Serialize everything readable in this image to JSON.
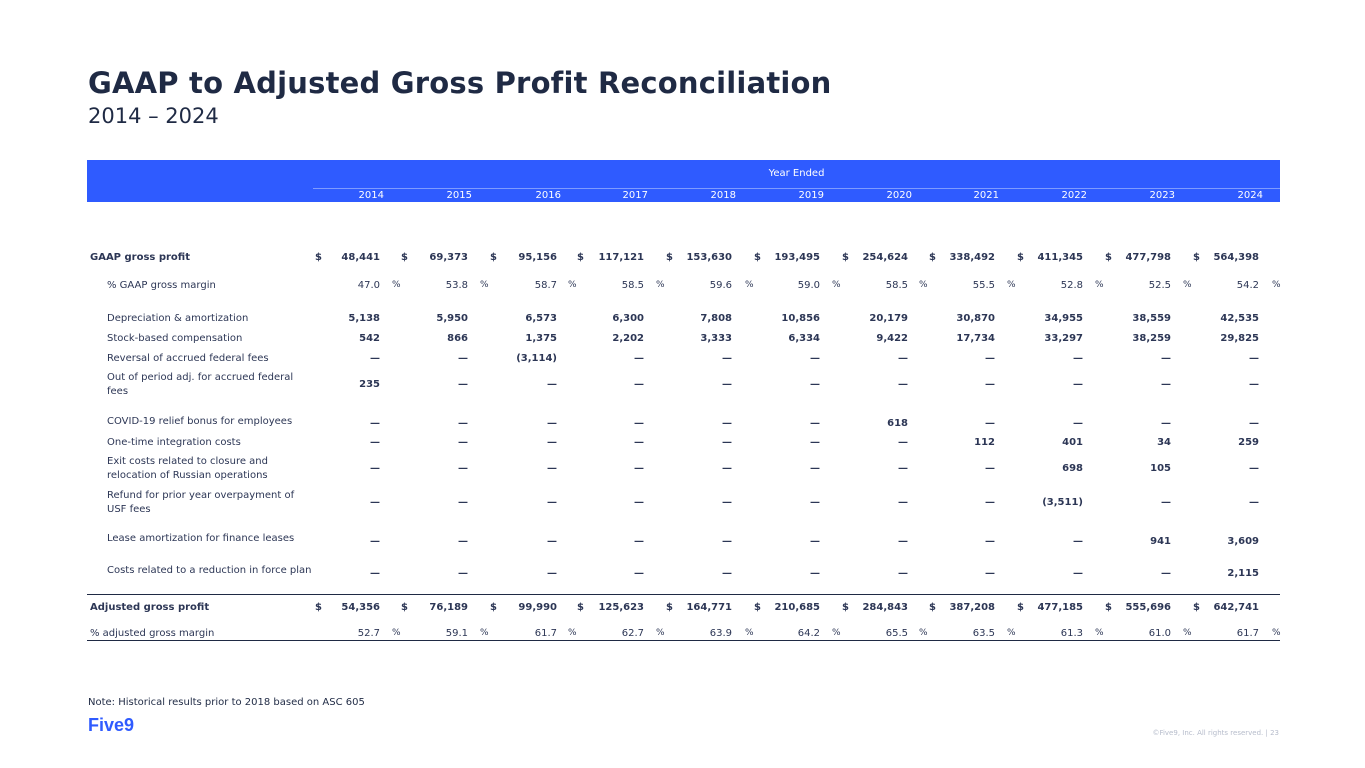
{
  "title": "GAAP to Adjusted Gross Profit Reconciliation",
  "subtitle": "2014 – 2024",
  "table": {
    "year_ended": "Year Ended",
    "years": [
      "2014",
      "2015",
      "2016",
      "2017",
      "2018",
      "2019",
      "2020",
      "2021",
      "2022",
      "2023",
      "2024"
    ],
    "rows": [
      {
        "label": "GAAP gross profit",
        "kind": "top",
        "dollar": true,
        "values": [
          "48,441",
          "69,373",
          "95,156",
          "117,121",
          "153,630",
          "193,495",
          "254,624",
          "338,492",
          "411,345",
          "477,798",
          "564,398"
        ]
      },
      {
        "label": "% GAAP gross margin",
        "kind": "sub",
        "pct": true,
        "values": [
          "47.0",
          "53.8",
          "58.7",
          "58.5",
          "59.6",
          "59.0",
          "58.5",
          "55.5",
          "52.8",
          "52.5",
          "54.2"
        ]
      },
      {
        "label": "Depreciation & amortization",
        "kind": "sub",
        "values": [
          "5,138",
          "5,950",
          "6,573",
          "6,300",
          "7,808",
          "10,856",
          "20,179",
          "30,870",
          "34,955",
          "38,559",
          "42,535"
        ]
      },
      {
        "label": "Stock-based compensation",
        "kind": "sub",
        "values": [
          "542",
          "866",
          "1,375",
          "2,202",
          "3,333",
          "6,334",
          "9,422",
          "17,734",
          "33,297",
          "38,259",
          "29,825"
        ]
      },
      {
        "label": "Reversal of accrued federal fees",
        "kind": "sub",
        "values": [
          "—",
          "—",
          "(3,114)",
          "—",
          "—",
          "—",
          "—",
          "—",
          "—",
          "—",
          "—"
        ]
      },
      {
        "label": "Out of period adj. for accrued federal fees",
        "kind": "sub",
        "values": [
          "235",
          "—",
          "—",
          "—",
          "—",
          "—",
          "—",
          "—",
          "—",
          "—",
          "—"
        ]
      },
      {
        "label": "COVID-19 relief bonus for employees",
        "kind": "sub",
        "values": [
          "—",
          "—",
          "—",
          "—",
          "—",
          "—",
          "618",
          "—",
          "—",
          "—",
          "—"
        ]
      },
      {
        "label": "One-time integration costs",
        "kind": "sub",
        "values": [
          "—",
          "—",
          "—",
          "—",
          "—",
          "—",
          "—",
          "112",
          "401",
          "34",
          "259"
        ]
      },
      {
        "label": "Exit costs related to closure and relocation of Russian operations",
        "kind": "sub",
        "values": [
          "—",
          "—",
          "—",
          "—",
          "—",
          "—",
          "—",
          "—",
          "698",
          "105",
          "—"
        ]
      },
      {
        "label": "Refund for prior year overpayment of USF fees",
        "kind": "sub",
        "values": [
          "—",
          "—",
          "—",
          "—",
          "—",
          "—",
          "—",
          "—",
          "(3,511)",
          "—",
          "—"
        ]
      },
      {
        "label": "Lease amortization for finance leases",
        "kind": "sub",
        "values": [
          "—",
          "—",
          "—",
          "—",
          "—",
          "—",
          "—",
          "—",
          "—",
          "941",
          "3,609"
        ]
      },
      {
        "label": "Costs related to a reduction in force plan",
        "kind": "sub",
        "values": [
          "—",
          "—",
          "—",
          "—",
          "—",
          "—",
          "—",
          "—",
          "—",
          "—",
          "2,115"
        ]
      },
      {
        "label": "Adjusted gross profit",
        "kind": "top",
        "dollar": true,
        "values": [
          "54,356",
          "76,189",
          "99,990",
          "125,623",
          "164,771",
          "210,685",
          "284,843",
          "387,208",
          "477,185",
          "555,696",
          "642,741"
        ]
      },
      {
        "label": "% adjusted gross margin",
        "kind": "top",
        "pct": true,
        "values": [
          "52.7",
          "59.1",
          "61.7",
          "62.7",
          "63.9",
          "64.2",
          "65.5",
          "63.5",
          "61.3",
          "61.0",
          "61.7"
        ]
      }
    ],
    "dollar_sign": "$",
    "percent_sign": "%"
  },
  "note": "Note: Historical results prior to 2018 based on ASC 605",
  "logo_text": "Five9",
  "footer": "©Five9, Inc. All rights reserved. | 23",
  "colors": {
    "header_bg": "#2f5bff",
    "text": "#1f2a44",
    "brand": "#2f5bff"
  }
}
